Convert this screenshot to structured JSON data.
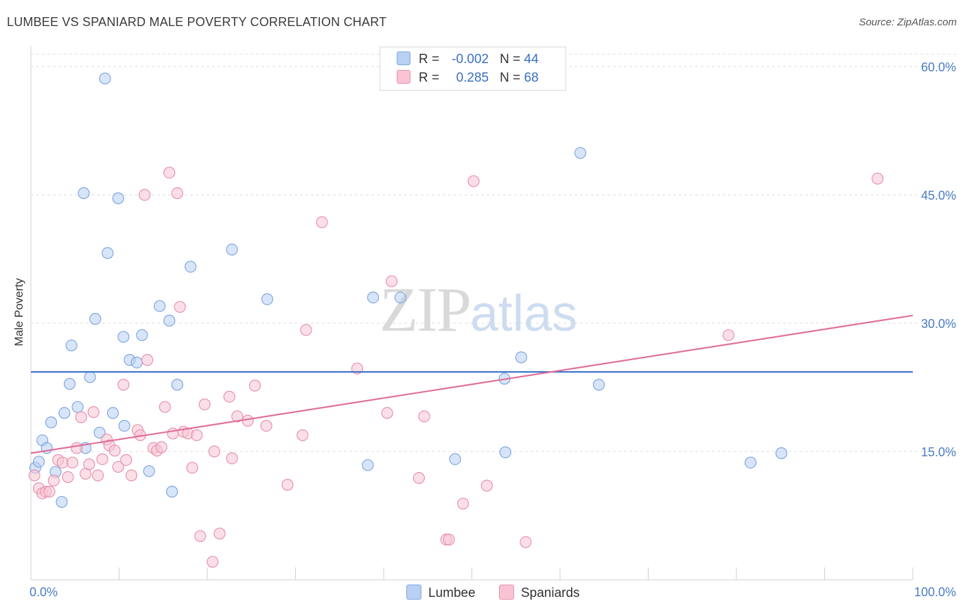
{
  "header": {
    "title": "LUMBEE VS SPANIARD MALE POVERTY CORRELATION CHART",
    "source": "Source: ZipAtlas.com"
  },
  "watermark": {
    "zip": "ZIP",
    "atlas": "atlas"
  },
  "legend": {
    "rows": [
      {
        "r_label": "R =",
        "r_value": "-0.002",
        "n_label": "N =",
        "n_value": "44",
        "color": "#b8d0f2",
        "border": "#7fa6df"
      },
      {
        "r_label": "R =",
        "r_value": "0.285",
        "n_label": "N =",
        "n_value": "68",
        "color": "#f8c4d4",
        "border": "#e891ad"
      }
    ]
  },
  "bottom_legend": [
    {
      "label": "Lumbee",
      "color": "#b8d0f2",
      "border": "#7fa6df"
    },
    {
      "label": "Spaniards",
      "color": "#f8c4d4",
      "border": "#e891ad"
    }
  ],
  "chart_data": {
    "type": "scatter",
    "title": "LUMBEE VS SPANIARD MALE POVERTY CORRELATION CHART",
    "xlabel": "",
    "ylabel": "Male Poverty",
    "xlim": [
      0,
      100
    ],
    "ylim": [
      0,
      60
    ],
    "x_tick_labels": [
      "0.0%",
      "100.0%"
    ],
    "y_ticks": [
      {
        "value": 15,
        "label": "15.0%"
      },
      {
        "value": 30,
        "label": "30.0%"
      },
      {
        "value": 45,
        "label": "45.0%"
      },
      {
        "value": 60,
        "label": "60.0%"
      }
    ],
    "grid": true,
    "series": [
      {
        "name": "Lumbee",
        "color": "#7fa6df",
        "fill": "#b8d0f2",
        "trend": {
          "x": [
            0,
            100
          ],
          "y": [
            24.3,
            24.3
          ],
          "color": "#3b72c9"
        },
        "points": [
          [
            0.5,
            13.1
          ],
          [
            0.9,
            13.8
          ],
          [
            1.3,
            16.3
          ],
          [
            1.8,
            15.4
          ],
          [
            2.3,
            18.4
          ],
          [
            2.8,
            12.6
          ],
          [
            3.5,
            9.1
          ],
          [
            3.8,
            19.5
          ],
          [
            4.4,
            22.9
          ],
          [
            4.6,
            27.4
          ],
          [
            5.3,
            20.2
          ],
          [
            6.0,
            45.2
          ],
          [
            6.2,
            15.4
          ],
          [
            6.7,
            23.7
          ],
          [
            7.3,
            30.5
          ],
          [
            7.8,
            17.2
          ],
          [
            8.4,
            58.6
          ],
          [
            8.7,
            38.2
          ],
          [
            9.3,
            19.5
          ],
          [
            9.9,
            44.6
          ],
          [
            10.5,
            28.4
          ],
          [
            10.6,
            18.0
          ],
          [
            11.2,
            25.7
          ],
          [
            12.0,
            25.4
          ],
          [
            12.6,
            28.6
          ],
          [
            13.4,
            12.7
          ],
          [
            14.6,
            32.0
          ],
          [
            15.7,
            30.3
          ],
          [
            16.0,
            10.3
          ],
          [
            16.6,
            22.8
          ],
          [
            18.1,
            36.6
          ],
          [
            22.8,
            38.6
          ],
          [
            26.8,
            32.8
          ],
          [
            38.2,
            13.4
          ],
          [
            38.8,
            33.0
          ],
          [
            41.9,
            33.0
          ],
          [
            48.1,
            14.1
          ],
          [
            53.7,
            23.5
          ],
          [
            53.8,
            14.9
          ],
          [
            55.6,
            26.0
          ],
          [
            62.3,
            49.9
          ],
          [
            64.4,
            22.8
          ],
          [
            81.6,
            13.7
          ],
          [
            85.1,
            14.8
          ]
        ]
      },
      {
        "name": "Spaniards",
        "color": "#e891ad",
        "fill": "#f8c4d4",
        "trend": {
          "x": [
            0,
            100
          ],
          "y": [
            14.8,
            30.9
          ],
          "color": "#e0709a"
        },
        "points": [
          [
            0.4,
            12.2
          ],
          [
            0.9,
            10.7
          ],
          [
            1.3,
            10.1
          ],
          [
            1.7,
            10.3
          ],
          [
            2.1,
            10.3
          ],
          [
            2.6,
            11.6
          ],
          [
            3.1,
            14.0
          ],
          [
            3.6,
            13.7
          ],
          [
            4.2,
            12.0
          ],
          [
            4.7,
            13.7
          ],
          [
            5.2,
            15.4
          ],
          [
            5.7,
            19.0
          ],
          [
            6.2,
            12.4
          ],
          [
            6.6,
            13.5
          ],
          [
            7.1,
            19.6
          ],
          [
            7.6,
            12.2
          ],
          [
            8.1,
            14.1
          ],
          [
            8.6,
            16.4
          ],
          [
            8.9,
            15.7
          ],
          [
            9.5,
            15.1
          ],
          [
            9.9,
            13.2
          ],
          [
            10.5,
            22.8
          ],
          [
            10.8,
            14.0
          ],
          [
            11.4,
            12.2
          ],
          [
            12.1,
            17.5
          ],
          [
            12.4,
            16.9
          ],
          [
            12.9,
            45.0
          ],
          [
            13.2,
            25.7
          ],
          [
            13.9,
            15.4
          ],
          [
            14.3,
            15.1
          ],
          [
            14.8,
            15.5
          ],
          [
            15.2,
            20.2
          ],
          [
            15.7,
            47.6
          ],
          [
            16.1,
            17.1
          ],
          [
            16.6,
            45.2
          ],
          [
            16.9,
            31.9
          ],
          [
            17.3,
            17.3
          ],
          [
            17.8,
            17.1
          ],
          [
            18.3,
            13.1
          ],
          [
            18.8,
            16.9
          ],
          [
            19.2,
            5.1
          ],
          [
            19.7,
            20.5
          ],
          [
            20.6,
            2.1
          ],
          [
            20.8,
            15.0
          ],
          [
            21.4,
            5.4
          ],
          [
            22.5,
            21.4
          ],
          [
            22.8,
            14.2
          ],
          [
            23.4,
            19.1
          ],
          [
            24.6,
            18.6
          ],
          [
            25.4,
            22.7
          ],
          [
            26.7,
            18.0
          ],
          [
            29.1,
            11.1
          ],
          [
            30.8,
            16.9
          ],
          [
            31.2,
            29.2
          ],
          [
            33.0,
            41.8
          ],
          [
            37.0,
            24.7
          ],
          [
            40.4,
            19.5
          ],
          [
            40.9,
            34.9
          ],
          [
            44.0,
            11.9
          ],
          [
            44.6,
            19.1
          ],
          [
            47.1,
            4.7
          ],
          [
            47.4,
            4.7
          ],
          [
            49.0,
            8.9
          ],
          [
            50.2,
            46.6
          ],
          [
            51.7,
            11.0
          ],
          [
            56.1,
            4.4
          ],
          [
            79.1,
            28.6
          ],
          [
            96.0,
            46.9
          ]
        ]
      }
    ]
  }
}
